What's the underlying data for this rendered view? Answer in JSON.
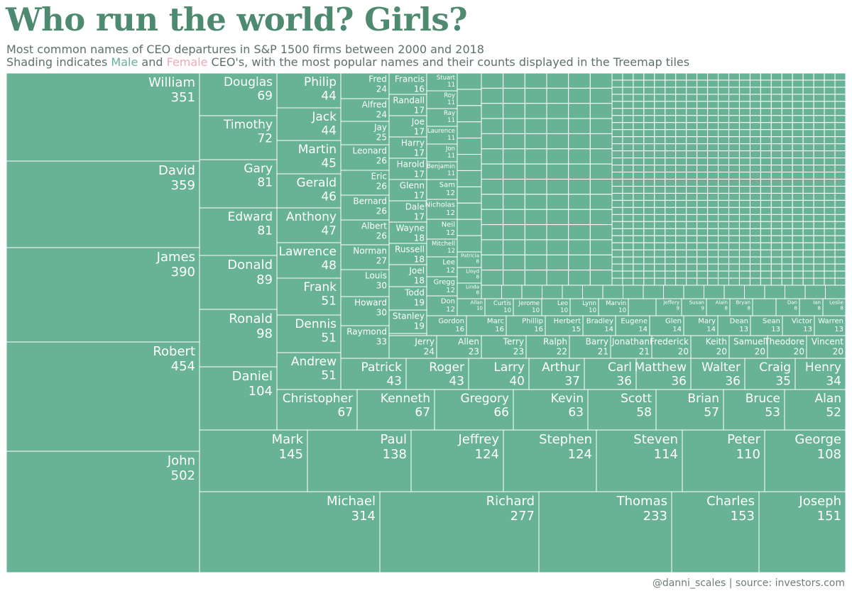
{
  "title": "Who run the world? Girls?",
  "subtitle_line1": "Most common names of CEO departures in S&P 1500 firms between 2000 and 2018",
  "subtitle_line2": {
    "prefix": "Shading indicates ",
    "male_word": "Male",
    "and_word": " and ",
    "female_word": "Female",
    "suffix": " CEO's, with the most popular names and their counts displayed in the Treemap tiles"
  },
  "footer": "@danni_scales | source: investors.com",
  "colors": {
    "male": "#68b296",
    "female": "#f2a7b6",
    "title": "#4e8a6f",
    "tile_border": "#ffffff"
  },
  "chart_data": {
    "type": "treemap",
    "labeled_tiles": [
      {
        "name": "John",
        "value": 502,
        "gender": "male"
      },
      {
        "name": "Robert",
        "value": 454,
        "gender": "male"
      },
      {
        "name": "James",
        "value": 390,
        "gender": "male"
      },
      {
        "name": "David",
        "value": 359,
        "gender": "male"
      },
      {
        "name": "William",
        "value": 351,
        "gender": "male"
      },
      {
        "name": "Michael",
        "value": 314,
        "gender": "male"
      },
      {
        "name": "Richard",
        "value": 277,
        "gender": "male"
      },
      {
        "name": "Thomas",
        "value": 233,
        "gender": "male"
      },
      {
        "name": "Charles",
        "value": 153,
        "gender": "male"
      },
      {
        "name": "Joseph",
        "value": 151,
        "gender": "male"
      },
      {
        "name": "Mark",
        "value": 145,
        "gender": "male"
      },
      {
        "name": "Paul",
        "value": 138,
        "gender": "male"
      },
      {
        "name": "Jeffrey",
        "value": 124,
        "gender": "male"
      },
      {
        "name": "Stephen",
        "value": 124,
        "gender": "male"
      },
      {
        "name": "Steven",
        "value": 114,
        "gender": "male"
      },
      {
        "name": "Peter",
        "value": 110,
        "gender": "male"
      },
      {
        "name": "George",
        "value": 108,
        "gender": "male"
      },
      {
        "name": "Daniel",
        "value": 104,
        "gender": "male"
      },
      {
        "name": "Ronald",
        "value": 98,
        "gender": "male"
      },
      {
        "name": "Donald",
        "value": 89,
        "gender": "male"
      },
      {
        "name": "Edward",
        "value": 81,
        "gender": "male"
      },
      {
        "name": "Gary",
        "value": 81,
        "gender": "male"
      },
      {
        "name": "Timothy",
        "value": 72,
        "gender": "male"
      },
      {
        "name": "Douglas",
        "value": 69,
        "gender": "male"
      },
      {
        "name": "Christopher",
        "value": 67,
        "gender": "male"
      },
      {
        "name": "Kenneth",
        "value": 67,
        "gender": "male"
      },
      {
        "name": "Gregory",
        "value": 66,
        "gender": "male"
      },
      {
        "name": "Kevin",
        "value": 63,
        "gender": "male"
      },
      {
        "name": "Scott",
        "value": 58,
        "gender": "male"
      },
      {
        "name": "Brian",
        "value": 57,
        "gender": "male"
      },
      {
        "name": "Bruce",
        "value": 53,
        "gender": "male"
      },
      {
        "name": "Alan",
        "value": 52,
        "gender": "male"
      },
      {
        "name": "Andrew",
        "value": 51,
        "gender": "male"
      },
      {
        "name": "Dennis",
        "value": 51,
        "gender": "male"
      },
      {
        "name": "Frank",
        "value": 51,
        "gender": "male"
      },
      {
        "name": "Lawrence",
        "value": 48,
        "gender": "male"
      },
      {
        "name": "Anthony",
        "value": 47,
        "gender": "male"
      },
      {
        "name": "Gerald",
        "value": 46,
        "gender": "male"
      },
      {
        "name": "Martin",
        "value": 45,
        "gender": "male"
      },
      {
        "name": "Jack",
        "value": 44,
        "gender": "male"
      },
      {
        "name": "Philip",
        "value": 44,
        "gender": "male"
      },
      {
        "name": "Patrick",
        "value": 43,
        "gender": "male"
      },
      {
        "name": "Roger",
        "value": 43,
        "gender": "male"
      },
      {
        "name": "Larry",
        "value": 40,
        "gender": "male"
      },
      {
        "name": "Arthur",
        "value": 37,
        "gender": "male"
      },
      {
        "name": "Carl",
        "value": 36,
        "gender": "male"
      },
      {
        "name": "Matthew",
        "value": 36,
        "gender": "male"
      },
      {
        "name": "Walter",
        "value": 36,
        "gender": "male"
      },
      {
        "name": "Craig",
        "value": 35,
        "gender": "male"
      },
      {
        "name": "Henry",
        "value": 34,
        "gender": "male"
      },
      {
        "name": "Raymond",
        "value": 33,
        "gender": "male"
      },
      {
        "name": "Howard",
        "value": 30,
        "gender": "male"
      },
      {
        "name": "Louis",
        "value": 30,
        "gender": "male"
      },
      {
        "name": "Norman",
        "value": 27,
        "gender": "male"
      },
      {
        "name": "Albert",
        "value": 26,
        "gender": "male"
      },
      {
        "name": "Bernard",
        "value": 26,
        "gender": "male"
      },
      {
        "name": "Eric",
        "value": 26,
        "gender": "male"
      },
      {
        "name": "Leonard",
        "value": 26,
        "gender": "male"
      },
      {
        "name": "Jay",
        "value": 25,
        "gender": "male"
      },
      {
        "name": "Alfred",
        "value": 24,
        "gender": "male"
      },
      {
        "name": "Fred",
        "value": 24,
        "gender": "male"
      },
      {
        "name": "Jerry",
        "value": 24,
        "gender": "male"
      },
      {
        "name": "Allen",
        "value": 23,
        "gender": "male"
      },
      {
        "name": "Terry",
        "value": 23,
        "gender": "male"
      },
      {
        "name": "Ralph",
        "value": 22,
        "gender": "male"
      },
      {
        "name": "Barry",
        "value": 21,
        "gender": "male"
      },
      {
        "name": "Jonathan",
        "value": 21,
        "gender": "male"
      },
      {
        "name": "Frederick",
        "value": 20,
        "gender": "male"
      },
      {
        "name": "Keith",
        "value": 20,
        "gender": "male"
      },
      {
        "name": "Samuel",
        "value": 20,
        "gender": "male"
      },
      {
        "name": "Theodore",
        "value": 20,
        "gender": "male"
      },
      {
        "name": "Vincent",
        "value": 20,
        "gender": "male"
      },
      {
        "name": "Stanley",
        "value": 19,
        "gender": "male"
      },
      {
        "name": "Todd",
        "value": 19,
        "gender": "male"
      },
      {
        "name": "Wayne",
        "value": 18,
        "gender": "male"
      },
      {
        "name": "Russell",
        "value": 18,
        "gender": "male"
      },
      {
        "name": "Joel",
        "value": 18,
        "gender": "male"
      },
      {
        "name": "Francis",
        "value": 16,
        "gender": "male"
      },
      {
        "name": "Randall",
        "value": 17,
        "gender": "male"
      },
      {
        "name": "Joe",
        "value": 17,
        "gender": "male"
      },
      {
        "name": "Harry",
        "value": 17,
        "gender": "male"
      },
      {
        "name": "Harold",
        "value": 17,
        "gender": "male"
      },
      {
        "name": "Glenn",
        "value": 17,
        "gender": "male"
      },
      {
        "name": "Dale",
        "value": 17,
        "gender": "male"
      },
      {
        "name": "Gordon",
        "value": 16,
        "gender": "male"
      },
      {
        "name": "Marc",
        "value": 16,
        "gender": "male"
      },
      {
        "name": "Phillip",
        "value": 16,
        "gender": "male"
      },
      {
        "name": "Herbert",
        "value": 15,
        "gender": "male"
      },
      {
        "name": "Bradley",
        "value": 14,
        "gender": "male"
      },
      {
        "name": "Eugene",
        "value": 14,
        "gender": "male"
      },
      {
        "name": "Glen",
        "value": 14,
        "gender": "male"
      },
      {
        "name": "Mary",
        "value": 14,
        "gender": "male"
      },
      {
        "name": "Dean",
        "value": 13,
        "gender": "male"
      },
      {
        "name": "Sean",
        "value": 13,
        "gender": "male"
      },
      {
        "name": "Victor",
        "value": 13,
        "gender": "male"
      },
      {
        "name": "Warren",
        "value": 13,
        "gender": "male"
      },
      {
        "name": "Sam",
        "value": 12,
        "gender": "male"
      },
      {
        "name": "Nicholas",
        "value": 12,
        "gender": "male"
      },
      {
        "name": "Neil",
        "value": 12,
        "gender": "male"
      },
      {
        "name": "Mitchell",
        "value": 12,
        "gender": "male"
      },
      {
        "name": "Lee",
        "value": 12,
        "gender": "male"
      },
      {
        "name": "Gregg",
        "value": 12,
        "gender": "male"
      },
      {
        "name": "Don",
        "value": 12,
        "gender": "male"
      },
      {
        "name": "Stuart",
        "value": 11,
        "gender": "male"
      },
      {
        "name": "Roy",
        "value": 11,
        "gender": "male"
      },
      {
        "name": "Ray",
        "value": 11,
        "gender": "male"
      },
      {
        "name": "Laurence",
        "value": 11,
        "gender": "male"
      },
      {
        "name": "Jon",
        "value": 11,
        "gender": "male"
      },
      {
        "name": "Benjamin",
        "value": 11,
        "gender": "male"
      },
      {
        "name": "Allan",
        "value": 10,
        "gender": "male"
      },
      {
        "name": "Curtis",
        "value": 10,
        "gender": "male"
      },
      {
        "name": "Jerome",
        "value": 10,
        "gender": "male"
      },
      {
        "name": "Leo",
        "value": 10,
        "gender": "male"
      },
      {
        "name": "Lynn",
        "value": 10,
        "gender": "male"
      },
      {
        "name": "Marvin",
        "value": 10,
        "gender": "male"
      },
      {
        "name": "Jeffery",
        "value": 9,
        "gender": "male"
      },
      {
        "name": "Susan",
        "value": 9,
        "gender": "male"
      },
      {
        "name": "Alain",
        "value": 8,
        "gender": "male"
      },
      {
        "name": "Bryan",
        "value": 8,
        "gender": "male"
      },
      {
        "name": "Dan",
        "value": 8,
        "gender": "male"
      },
      {
        "name": "Ian",
        "value": 8,
        "gender": "male"
      },
      {
        "name": "Leslie",
        "value": 8,
        "gender": "male"
      },
      {
        "name": "Patricia",
        "value": 8,
        "gender": "male"
      },
      {
        "name": "Lloyd",
        "value": 8,
        "gender": "male"
      },
      {
        "name": "Linda",
        "value": 8,
        "gender": "male"
      }
    ]
  }
}
